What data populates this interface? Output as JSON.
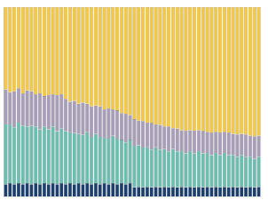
{
  "chart_data": {
    "type": "bar",
    "stacked": true,
    "grid": false,
    "tick_labels": false,
    "categories": [
      null,
      null,
      null,
      null,
      null,
      null,
      null,
      null,
      null,
      null,
      null,
      null,
      null,
      null,
      null,
      null,
      null,
      null,
      null,
      null,
      null,
      null,
      null,
      null,
      null,
      null,
      null,
      null,
      null,
      null,
      null,
      null,
      null,
      null,
      null,
      null,
      null,
      null,
      null,
      null,
      null,
      null,
      null,
      null,
      null,
      null,
      null,
      null,
      null,
      null,
      null,
      null,
      null,
      null,
      null,
      null,
      null,
      null,
      null,
      null
    ],
    "ylim": [
      0,
      1
    ],
    "series": [
      {
        "color": "#1B3F6E",
        "values": [
          0.065,
          0.07,
          0.065,
          0.07,
          0.065,
          0.07,
          0.065,
          0.07,
          0.065,
          0.07,
          0.065,
          0.07,
          0.065,
          0.07,
          0.065,
          0.07,
          0.065,
          0.07,
          0.065,
          0.07,
          0.065,
          0.07,
          0.065,
          0.07,
          0.065,
          0.07,
          0.065,
          0.07,
          0.065,
          0.07,
          0.048,
          0.05,
          0.048,
          0.05,
          0.048,
          0.05,
          0.048,
          0.05,
          0.048,
          0.05,
          0.048,
          0.05,
          0.048,
          0.05,
          0.048,
          0.05,
          0.048,
          0.05,
          0.048,
          0.05,
          0.048,
          0.05,
          0.048,
          0.05,
          0.048,
          0.05,
          0.048,
          0.05,
          0.048,
          0.05
        ]
      },
      {
        "color": "#6BBFB0",
        "values": [
          0.32,
          0.31,
          0.3,
          0.32,
          0.31,
          0.3,
          0.31,
          0.3,
          0.29,
          0.3,
          0.29,
          0.3,
          0.28,
          0.29,
          0.28,
          0.27,
          0.27,
          0.26,
          0.26,
          0.27,
          0.25,
          0.26,
          0.25,
          0.24,
          0.24,
          0.25,
          0.24,
          0.23,
          0.22,
          0.23,
          0.22,
          0.22,
          0.21,
          0.21,
          0.2,
          0.21,
          0.2,
          0.2,
          0.19,
          0.2,
          0.19,
          0.19,
          0.18,
          0.19,
          0.18,
          0.19,
          0.18,
          0.18,
          0.17,
          0.18,
          0.17,
          0.18,
          0.17,
          0.17,
          0.16,
          0.17,
          0.16,
          0.16,
          0.15,
          0.16
        ]
      },
      {
        "color": "#A89EBA",
        "values": [
          0.18,
          0.17,
          0.19,
          0.18,
          0.17,
          0.19,
          0.18,
          0.17,
          0.19,
          0.16,
          0.18,
          0.17,
          0.19,
          0.18,
          0.17,
          0.16,
          0.17,
          0.16,
          0.17,
          0.15,
          0.16,
          0.15,
          0.16,
          0.15,
          0.16,
          0.14,
          0.15,
          0.14,
          0.15,
          0.13,
          0.14,
          0.13,
          0.14,
          0.13,
          0.14,
          0.12,
          0.13,
          0.12,
          0.13,
          0.11,
          0.12,
          0.11,
          0.12,
          0.11,
          0.12,
          0.11,
          0.12,
          0.11,
          0.12,
          0.11,
          0.12,
          0.11,
          0.12,
          0.11,
          0.12,
          0.11,
          0.12,
          0.11,
          0.12,
          0.11
        ]
      },
      {
        "color": "#F5C842",
        "values": [
          0.435,
          0.45,
          0.445,
          0.43,
          0.455,
          0.44,
          0.445,
          0.46,
          0.455,
          0.47,
          0.465,
          0.46,
          0.465,
          0.46,
          0.485,
          0.5,
          0.495,
          0.51,
          0.505,
          0.51,
          0.525,
          0.52,
          0.525,
          0.54,
          0.535,
          0.54,
          0.545,
          0.56,
          0.565,
          0.57,
          0.592,
          0.6,
          0.602,
          0.61,
          0.612,
          0.62,
          0.622,
          0.63,
          0.632,
          0.64,
          0.642,
          0.65,
          0.652,
          0.65,
          0.652,
          0.65,
          0.652,
          0.66,
          0.662,
          0.66,
          0.662,
          0.66,
          0.662,
          0.67,
          0.672,
          0.67,
          0.672,
          0.68,
          0.682,
          0.68
        ]
      }
    ]
  }
}
